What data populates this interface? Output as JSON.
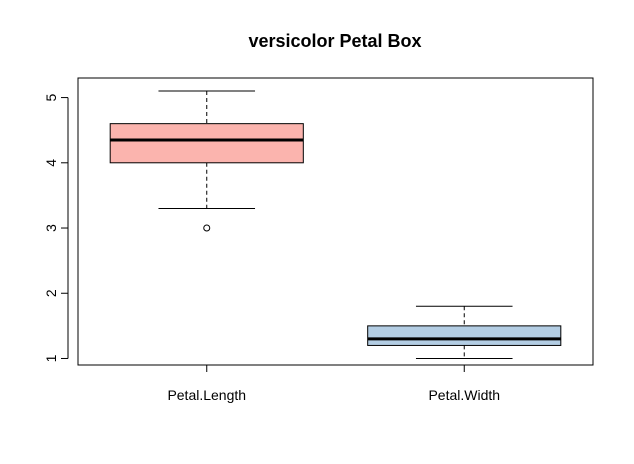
{
  "chart_data": {
    "type": "boxplot",
    "title": "versicolor Petal Box",
    "xlabel": "",
    "ylabel": "",
    "ylim": [
      0.9,
      5.3
    ],
    "yticks": [
      "1",
      "2",
      "3",
      "4",
      "5"
    ],
    "categories": [
      "Petal.Length",
      "Petal.Width"
    ],
    "boxes": [
      {
        "category": "Petal.Length",
        "whisker_low": 3.3,
        "q1": 4.0,
        "median": 4.35,
        "q3": 4.6,
        "whisker_high": 5.1,
        "outliers": [
          3.0
        ],
        "fill": "#FBB4AE"
      },
      {
        "category": "Petal.Width",
        "whisker_low": 1.0,
        "q1": 1.2,
        "median": 1.3,
        "q3": 1.5,
        "whisker_high": 1.8,
        "outliers": [],
        "fill": "#B3CDE3"
      }
    ],
    "grid": false,
    "legend": "none"
  }
}
